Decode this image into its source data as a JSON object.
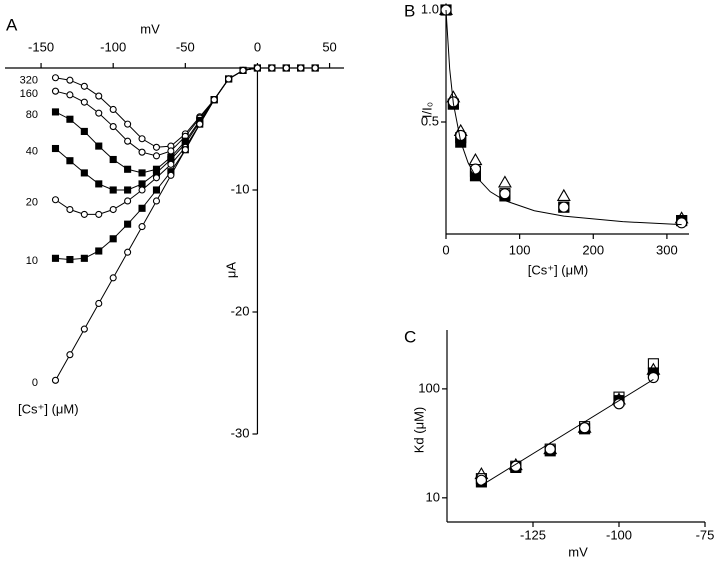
{
  "chart_data": [
    {
      "type": "line",
      "panel_label": "A",
      "x_label": "mV",
      "y_label": "μA",
      "legend_title": "[Cs⁺] (μM)",
      "x": [
        -140,
        -130,
        -120,
        -110,
        -100,
        -90,
        -80,
        -70,
        -60,
        -50,
        -40,
        -30,
        -20,
        -10,
        0,
        10,
        20,
        30,
        40
      ],
      "xlim": [
        -175,
        60
      ],
      "xticks": [
        -150,
        -100,
        -50,
        0,
        50
      ],
      "ylim": [
        -30,
        0
      ],
      "yticks": [
        -30,
        -20,
        -10
      ],
      "series": [
        {
          "name": "320",
          "marker": "open-circle",
          "color": "#000",
          "values": [
            -0.8,
            -1.0,
            -1.5,
            -2.3,
            -3.4,
            -4.6,
            -5.8,
            -6.5,
            -6.4,
            -5.4,
            -4.0,
            -2.6,
            -0.9,
            -0.2,
            0,
            0,
            0,
            0,
            0
          ]
        },
        {
          "name": "160",
          "marker": "open-circle",
          "color": "#000",
          "values": [
            -1.9,
            -2.2,
            -2.8,
            -3.7,
            -4.8,
            -6.0,
            -6.9,
            -7.2,
            -6.8,
            -5.6,
            -4.1,
            -2.6,
            -0.9,
            -0.2,
            0,
            0,
            0,
            0,
            0
          ]
        },
        {
          "name": "80",
          "marker": "filled-square",
          "color": "#000",
          "values": [
            -3.6,
            -4.2,
            -5.2,
            -6.4,
            -7.5,
            -8.3,
            -8.6,
            -8.3,
            -7.3,
            -6.0,
            -4.3,
            -2.6,
            -0.9,
            -0.2,
            0,
            0,
            0,
            0,
            0
          ]
        },
        {
          "name": "40",
          "marker": "filled-square",
          "color": "#000",
          "values": [
            -6.6,
            -7.6,
            -8.6,
            -9.5,
            -10.0,
            -10.0,
            -9.5,
            -8.6,
            -7.5,
            -6.2,
            -4.4,
            -2.6,
            -0.9,
            -0.2,
            0,
            0,
            0,
            0,
            0
          ]
        },
        {
          "name": "20",
          "marker": "open-circle",
          "color": "#000",
          "values": [
            -10.8,
            -11.6,
            -12.0,
            -12.0,
            -11.6,
            -10.9,
            -10.0,
            -9.0,
            -7.9,
            -6.5,
            -4.6,
            -2.6,
            -0.9,
            -0.2,
            0,
            0,
            0,
            0,
            0
          ]
        },
        {
          "name": "10",
          "marker": "filled-square",
          "color": "#000",
          "values": [
            -15.6,
            -15.7,
            -15.6,
            -15.0,
            -14.0,
            -12.8,
            -11.5,
            -10.0,
            -8.5,
            -6.7,
            -4.6,
            -2.6,
            -0.9,
            -0.2,
            0,
            0,
            0,
            0,
            0
          ]
        },
        {
          "name": "0",
          "marker": "open-circle",
          "color": "#000",
          "values": [
            -25.6,
            -23.5,
            -21.4,
            -19.3,
            -17.2,
            -15.1,
            -13.0,
            -10.9,
            -8.8,
            -6.7,
            -4.6,
            -2.6,
            -0.9,
            -0.2,
            0,
            0,
            0,
            0,
            0
          ]
        }
      ]
    },
    {
      "type": "scatter",
      "panel_label": "B",
      "x_label": "[Cs⁺] (μM)",
      "y_label": "I/I₀",
      "x": [
        0,
        10,
        20,
        40,
        80,
        160,
        320
      ],
      "xlim": [
        0,
        330
      ],
      "xticks": [
        0,
        100,
        200,
        300
      ],
      "ylim": [
        0,
        1
      ],
      "yticks": [
        0.5,
        {
          "value": 1,
          "label": "1.0"
        }
      ],
      "series": [
        {
          "marker": "open-triangle",
          "color": "#000",
          "values": [
            1.0,
            0.61,
            0.46,
            0.33,
            0.23,
            0.17,
            0.07
          ]
        },
        {
          "marker": "open-square",
          "color": "#000",
          "values": [
            1.0,
            0.58,
            0.43,
            0.28,
            0.18,
            0.12,
            0.06
          ]
        },
        {
          "marker": "filled-square",
          "color": "#000",
          "values": [
            1.0,
            0.58,
            0.41,
            0.26,
            0.17,
            0.12,
            0.06
          ]
        },
        {
          "marker": "open-circle",
          "color": "#000",
          "values": [
            1.0,
            0.59,
            0.44,
            0.29,
            0.18,
            0.12,
            0.05
          ]
        },
        {
          "marker": "line",
          "color": "#000",
          "x": [
            0,
            5,
            10,
            20,
            30,
            40,
            60,
            80,
            120,
            160,
            240,
            320
          ],
          "values": [
            1,
            0.737,
            0.583,
            0.412,
            0.318,
            0.259,
            0.189,
            0.149,
            0.104,
            0.08,
            0.055,
            0.042
          ]
        }
      ]
    },
    {
      "type": "scatter",
      "panel_label": "C",
      "x_label": "mV",
      "y_label": "Kd (μM)",
      "ylog": true,
      "x": [
        -140,
        -130,
        -120,
        -110,
        -100,
        -90
      ],
      "xlim": [
        -150,
        -75
      ],
      "xticks": [
        -125,
        -100,
        -75
      ],
      "ylim": [
        6,
        347
      ],
      "yticks": [
        10,
        100
      ],
      "series": [
        {
          "marker": "open-square",
          "color": "#000",
          "values": [
            15,
            19.5,
            28,
            45,
            84,
            170
          ]
        },
        {
          "marker": "open-triangle",
          "color": "#000",
          "values": [
            16.5,
            20,
            28,
            44,
            80,
            150
          ]
        },
        {
          "marker": "filled-square",
          "color": "#000",
          "values": [
            14,
            19,
            27,
            43,
            78,
            140
          ]
        },
        {
          "marker": "open-circle",
          "color": "#000",
          "values": [
            14.5,
            19.5,
            28,
            44,
            73,
            127
          ]
        },
        {
          "marker": "line",
          "color": "#000",
          "x": [
            -140,
            -90
          ],
          "values": [
            13,
            122
          ]
        }
      ]
    }
  ]
}
